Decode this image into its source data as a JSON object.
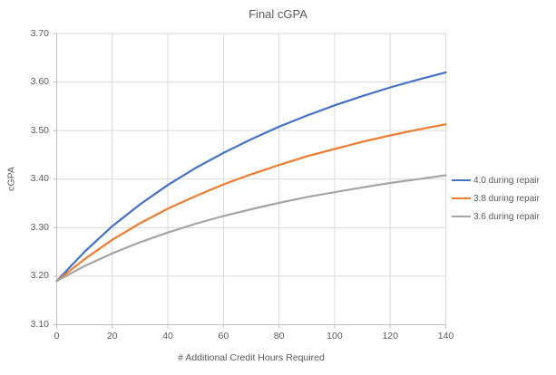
{
  "chart": {
    "title": "Final cGPA",
    "xlabel": "# Additional Credit Hours Required",
    "ylabel": "cGPA"
  },
  "chart_data": {
    "type": "line",
    "title": "Final cGPA",
    "xlabel": "# Additional Credit Hours Required",
    "ylabel": "cGPA",
    "xlim": [
      0,
      140
    ],
    "ylim": [
      3.1,
      3.7
    ],
    "x_ticks": [
      0,
      20,
      40,
      60,
      80,
      100,
      120,
      140
    ],
    "x_tick_labels": [
      "0",
      "20",
      "40",
      "60",
      "80",
      "100",
      "120",
      "140"
    ],
    "y_ticks": [
      3.1,
      3.2,
      3.3,
      3.4,
      3.5,
      3.6,
      3.7
    ],
    "y_tick_labels": [
      "3.10",
      "3.20",
      "3.30",
      "3.40",
      "3.50",
      "3.60",
      "3.70"
    ],
    "grid": true,
    "legend_position": "right",
    "x": [
      0,
      10,
      20,
      30,
      40,
      50,
      60,
      70,
      80,
      90,
      100,
      110,
      120,
      130,
      140
    ],
    "series": [
      {
        "name": "4.0 during repair",
        "color": "#4472C4",
        "values": [
          3.19,
          3.25,
          3.303,
          3.348,
          3.388,
          3.423,
          3.454,
          3.482,
          3.508,
          3.531,
          3.552,
          3.571,
          3.589,
          3.605,
          3.62
        ]
      },
      {
        "name": "3.8 during repair",
        "color": "#ED7D31",
        "values": [
          3.19,
          3.235,
          3.275,
          3.309,
          3.339,
          3.365,
          3.389,
          3.41,
          3.429,
          3.447,
          3.462,
          3.477,
          3.49,
          3.502,
          3.513
        ]
      },
      {
        "name": "3.6 during repair",
        "color": "#A5A5A5",
        "values": [
          3.19,
          3.221,
          3.247,
          3.27,
          3.29,
          3.308,
          3.324,
          3.338,
          3.351,
          3.363,
          3.373,
          3.383,
          3.392,
          3.4,
          3.408
        ]
      }
    ],
    "colors": {
      "gridline": "#D9D9D9",
      "axis": "#BFBFBF",
      "text": "#595959",
      "background": "#FFFFFF"
    }
  }
}
